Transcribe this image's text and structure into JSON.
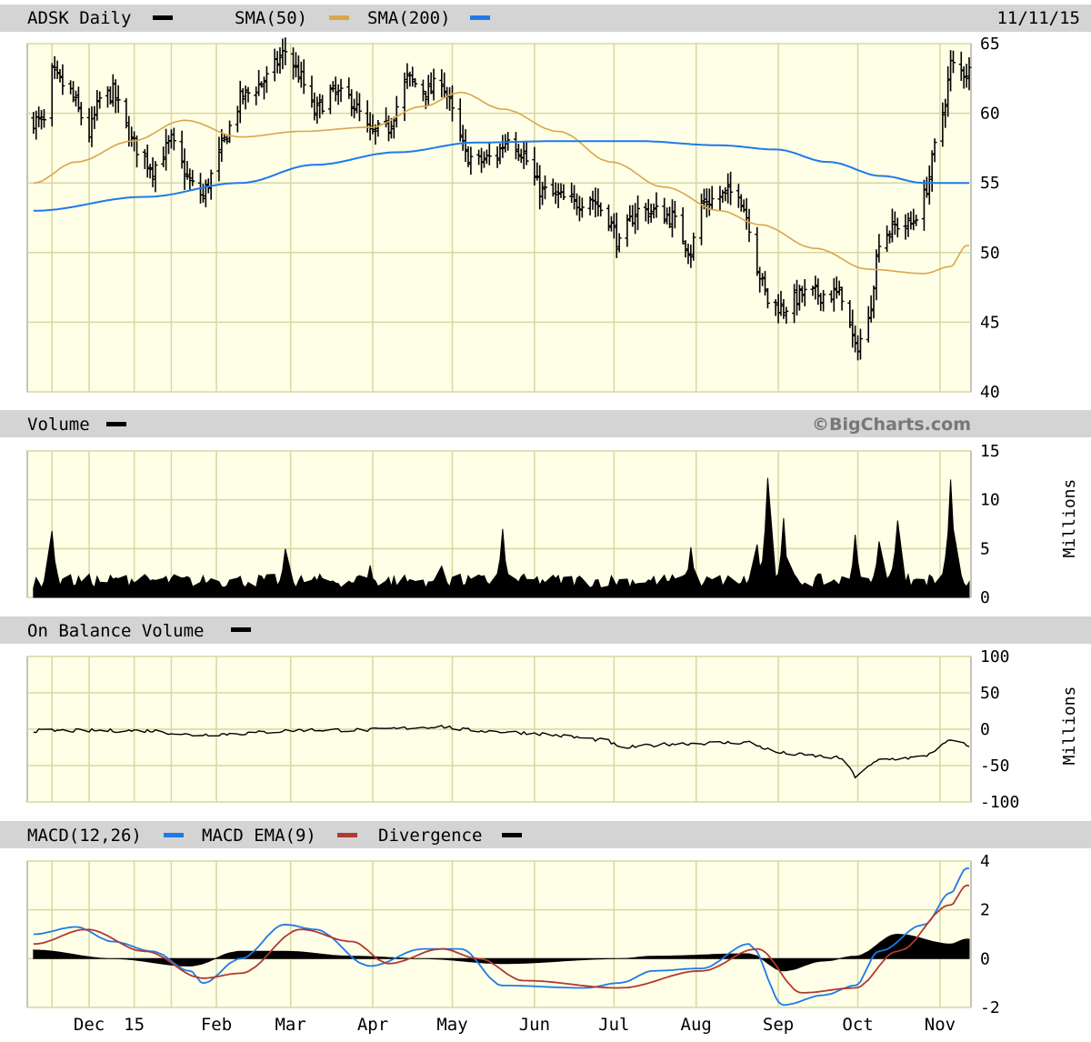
{
  "header": {
    "symbol_label": "ADSK Daily",
    "sma50_label": "SMA(50)",
    "sma200_label": "SMA(200)",
    "date": "11/11/15"
  },
  "credit": "©BigCharts.com",
  "colors": {
    "background": "#ffffff",
    "panel": "#ffffe8",
    "header_bar": "#d4d4d4",
    "grid": "#d7d7a0",
    "price": "#000000",
    "sma50": "#d9a64a",
    "sma200": "#1f7ae8",
    "volume": "#000000",
    "obv": "#000000",
    "macd": "#1f7ae8",
    "macd_ema": "#b03a2e",
    "divergence": "#000000"
  },
  "chart_data": [
    {
      "type": "ohlc",
      "panel": "price",
      "title": "ADSK Daily",
      "x_labels": [
        "Dec",
        "15",
        "Feb",
        "Mar",
        "Apr",
        "May",
        "Jun",
        "Jul",
        "Aug",
        "Sep",
        "Oct",
        "Nov"
      ],
      "y_ticks": [
        65,
        60,
        55,
        50,
        45,
        40
      ],
      "ylim": [
        40,
        65
      ],
      "price_anchors": [
        [
          "Nov 24",
          59.5
        ],
        [
          "Nov 28",
          59.3
        ],
        [
          "Dec 1",
          62.8
        ],
        [
          "Dec 8",
          61.5
        ],
        [
          "Dec 15",
          58.5
        ],
        [
          "Dec 19",
          61.0
        ],
        [
          "Dec 24",
          61.5
        ],
        [
          "Dec 31",
          58.0
        ],
        [
          "Jan 8",
          56.0
        ],
        [
          "Jan 15",
          58.0
        ],
        [
          "Jan 22",
          55.0
        ],
        [
          "Jan 27",
          54.0
        ],
        [
          "Feb 3",
          57.5
        ],
        [
          "Feb 10",
          61.0
        ],
        [
          "Feb 20",
          62.5
        ],
        [
          "Feb 27",
          64.5
        ],
        [
          "Mar 5",
          62.5
        ],
        [
          "Mar 10",
          60.0
        ],
        [
          "Mar 16",
          61.5
        ],
        [
          "Mar 24",
          61.0
        ],
        [
          "Mar 31",
          58.5
        ],
        [
          "Apr 7",
          59.0
        ],
        [
          "Apr 14",
          62.5
        ],
        [
          "Apr 22",
          61.5
        ],
        [
          "Apr 27",
          62.5
        ],
        [
          "May 1",
          60.0
        ],
        [
          "May 6",
          57.0
        ],
        [
          "May 11",
          56.5
        ],
        [
          "May 18",
          57.0
        ],
        [
          "May 22",
          58.5
        ],
        [
          "May 28",
          57.0
        ],
        [
          "Jun 3",
          54.5
        ],
        [
          "Jun 10",
          54.0
        ],
        [
          "Jun 16",
          53.5
        ],
        [
          "Jun 22",
          54.0
        ],
        [
          "Jun 29",
          52.5
        ],
        [
          "Jul 3",
          50.5
        ],
        [
          "Jul 9",
          53.0
        ],
        [
          "Jul 16",
          53.0
        ],
        [
          "Jul 23",
          52.5
        ],
        [
          "Jul 30",
          50.0
        ],
        [
          "Aug 3",
          53.5
        ],
        [
          "Aug 10",
          54.0
        ],
        [
          "Aug 17",
          54.5
        ],
        [
          "Aug 21",
          52.0
        ],
        [
          "Aug 24",
          49.0
        ],
        [
          "Aug 28",
          46.5
        ],
        [
          "Sep 3",
          46.0
        ],
        [
          "Sep 10",
          47.0
        ],
        [
          "Sep 18",
          47.0
        ],
        [
          "Sep 25",
          47.0
        ],
        [
          "Sep 30",
          43.0
        ],
        [
          "Oct 5",
          45.0
        ],
        [
          "Oct 9",
          51.0
        ],
        [
          "Oct 16",
          52.0
        ],
        [
          "Oct 21",
          52.0
        ],
        [
          "Oct 26",
          54.0
        ],
        [
          "Oct 28",
          55.5
        ],
        [
          "Oct 30",
          57.5
        ],
        [
          "Nov 3",
          61.0
        ],
        [
          "Nov 5",
          63.5
        ],
        [
          "Nov 9",
          63.0
        ],
        [
          "Nov 11",
          63.0
        ]
      ],
      "series": [
        {
          "name": "SMA(50)",
          "points": [
            [
              "Nov 24",
              55.0
            ],
            [
              "Dec 10",
              56.5
            ],
            [
              "Dec 31",
              58.0
            ],
            [
              "Jan 20",
              59.5
            ],
            [
              "Feb 10",
              58.3
            ],
            [
              "Mar 5",
              58.7
            ],
            [
              "Mar 31",
              59.0
            ],
            [
              "Apr 20",
              60.5
            ],
            [
              "May 4",
              61.5
            ],
            [
              "May 20",
              60.3
            ],
            [
              "Jun 10",
              58.7
            ],
            [
              "Jun 30",
              56.5
            ],
            [
              "Jul 20",
              54.7
            ],
            [
              "Aug 10",
              53.0
            ],
            [
              "Aug 25",
              52.0
            ],
            [
              "Sep 15",
              50.3
            ],
            [
              "Oct 5",
              48.8
            ],
            [
              "Oct 26",
              48.5
            ],
            [
              "Nov 5",
              49.0
            ],
            [
              "Nov 11",
              50.5
            ]
          ]
        },
        {
          "name": "SMA(200)",
          "points": [
            [
              "Nov 24",
              53.0
            ],
            [
              "Jan 5",
              54.0
            ],
            [
              "Feb 10",
              55.0
            ],
            [
              "Mar 10",
              56.3
            ],
            [
              "Apr 10",
              57.2
            ],
            [
              "May 10",
              57.9
            ],
            [
              "Jun 10",
              58.0
            ],
            [
              "Jul 10",
              58.0
            ],
            [
              "Aug 10",
              57.7
            ],
            [
              "Aug 31",
              57.4
            ],
            [
              "Sep 20",
              56.5
            ],
            [
              "Oct 10",
              55.5
            ],
            [
              "Oct 26",
              55.0
            ],
            [
              "Nov 11",
              55.0
            ]
          ]
        }
      ]
    },
    {
      "type": "area",
      "panel": "volume",
      "title": "Volume",
      "ylabel": "Millions",
      "y_ticks": [
        15,
        10,
        5,
        0
      ],
      "ylim": [
        0,
        15
      ],
      "base_level": 1.6,
      "spikes": [
        [
          "Dec 1",
          7.2
        ],
        [
          "Dec 31",
          2.0
        ],
        [
          "Jan 27",
          2.3
        ],
        [
          "Feb 27",
          5.0
        ],
        [
          "Mar 31",
          3.5
        ],
        [
          "Apr 27",
          3.5
        ],
        [
          "May 20",
          7.5
        ],
        [
          "Jul 30",
          5.5
        ],
        [
          "Aug 24",
          5.5
        ],
        [
          "Aug 28",
          12.5
        ],
        [
          "Sep 3",
          8.5
        ],
        [
          "Sep 30",
          6.5
        ],
        [
          "Oct 9",
          6.5
        ],
        [
          "Oct 16",
          9.0
        ],
        [
          "Nov 5",
          12.5
        ]
      ]
    },
    {
      "type": "line",
      "panel": "obv",
      "title": "On Balance Volume",
      "ylabel": "Millions",
      "y_ticks": [
        100,
        50,
        0,
        -50,
        -100
      ],
      "ylim": [
        -100,
        100
      ],
      "points": [
        [
          "Nov 24",
          -2
        ],
        [
          "Dec 15",
          -2
        ],
        [
          "Jan 8",
          -2
        ],
        [
          "Jan 22",
          -8
        ],
        [
          "Feb 10",
          -6
        ],
        [
          "Mar 5",
          -1
        ],
        [
          "Mar 31",
          -1
        ],
        [
          "Apr 27",
          4
        ],
        [
          "May 6",
          -1
        ],
        [
          "Jun 3",
          -6
        ],
        [
          "Jun 29",
          -16
        ],
        [
          "Jul 3",
          -26
        ],
        [
          "Jul 23",
          -20
        ],
        [
          "Aug 21",
          -18
        ],
        [
          "Aug 31",
          -32
        ],
        [
          "Sep 25",
          -40
        ],
        [
          "Sep 30",
          -65
        ],
        [
          "Oct 9",
          -42
        ],
        [
          "Oct 26",
          -38
        ],
        [
          "Nov 5",
          -15
        ],
        [
          "Nov 11",
          -22
        ]
      ]
    },
    {
      "type": "line",
      "panel": "macd",
      "title": "MACD(12,26)",
      "y_ticks": [
        4,
        2,
        0,
        -2
      ],
      "ylim": [
        -2,
        4
      ],
      "series": [
        {
          "name": "MACD(12,26)",
          "points": [
            [
              "Nov 24",
              1.0
            ],
            [
              "Dec 10",
              1.3
            ],
            [
              "Dec 24",
              0.7
            ],
            [
              "Jan 8",
              0.3
            ],
            [
              "Jan 22",
              -0.5
            ],
            [
              "Jan 27",
              -1.0
            ],
            [
              "Feb 10",
              0.0
            ],
            [
              "Feb 27",
              1.4
            ],
            [
              "Mar 10",
              1.2
            ],
            [
              "Mar 31",
              -0.3
            ],
            [
              "Apr 20",
              0.4
            ],
            [
              "May 4",
              0.4
            ],
            [
              "May 20",
              -1.1
            ],
            [
              "Jun 20",
              -1.2
            ],
            [
              "Jul 3",
              -1.0
            ],
            [
              "Jul 16",
              -0.5
            ],
            [
              "Aug 3",
              -0.4
            ],
            [
              "Aug 21",
              0.6
            ],
            [
              "Sep 3",
              -1.9
            ],
            [
              "Sep 18",
              -1.5
            ],
            [
              "Sep 30",
              -1.1
            ],
            [
              "Oct 9",
              0.3
            ],
            [
              "Oct 26",
              1.4
            ],
            [
              "Nov 5",
              2.7
            ],
            [
              "Nov 11",
              3.7
            ]
          ]
        },
        {
          "name": "MACD EMA(9)",
          "points": [
            [
              "Nov 24",
              0.6
            ],
            [
              "Dec 14",
              1.2
            ],
            [
              "Jan 5",
              0.3
            ],
            [
              "Jan 27",
              -0.8
            ],
            [
              "Feb 10",
              -0.6
            ],
            [
              "Mar 5",
              1.2
            ],
            [
              "Mar 24",
              0.7
            ],
            [
              "Apr 7",
              -0.2
            ],
            [
              "Apr 27",
              0.4
            ],
            [
              "May 11",
              0.0
            ],
            [
              "May 28",
              -0.9
            ],
            [
              "Jul 3",
              -1.2
            ],
            [
              "Aug 3",
              -0.5
            ],
            [
              "Aug 24",
              0.4
            ],
            [
              "Sep 10",
              -1.4
            ],
            [
              "Sep 30",
              -1.2
            ],
            [
              "Oct 16",
              0.3
            ],
            [
              "Nov 5",
              2.2
            ],
            [
              "Nov 11",
              3.0
            ]
          ]
        },
        {
          "name": "Divergence",
          "points": [
            [
              "Nov 24",
              0.35
            ],
            [
              "Dec 24",
              0.0
            ],
            [
              "Jan 22",
              -0.3
            ],
            [
              "Feb 10",
              0.3
            ],
            [
              "Feb 27",
              0.3
            ],
            [
              "Mar 24",
              0.1
            ],
            [
              "Apr 20",
              0.0
            ],
            [
              "May 20",
              -0.2
            ],
            [
              "Jul 3",
              0.0
            ],
            [
              "Jul 16",
              0.1
            ],
            [
              "Aug 21",
              0.2
            ],
            [
              "Sep 3",
              -0.5
            ],
            [
              "Sep 18",
              -0.1
            ],
            [
              "Sep 30",
              0.1
            ],
            [
              "Oct 16",
              1.0
            ],
            [
              "Nov 5",
              0.6
            ],
            [
              "Nov 11",
              0.8
            ]
          ]
        }
      ]
    }
  ],
  "panels": {
    "volume": {
      "title": "Volume",
      "unit": "Millions"
    },
    "obv": {
      "title": "On Balance Volume",
      "unit": "Millions"
    },
    "macd": {
      "macd_label": "MACD(12,26)",
      "ema_label": "MACD EMA(9)",
      "div_label": "Divergence"
    }
  }
}
